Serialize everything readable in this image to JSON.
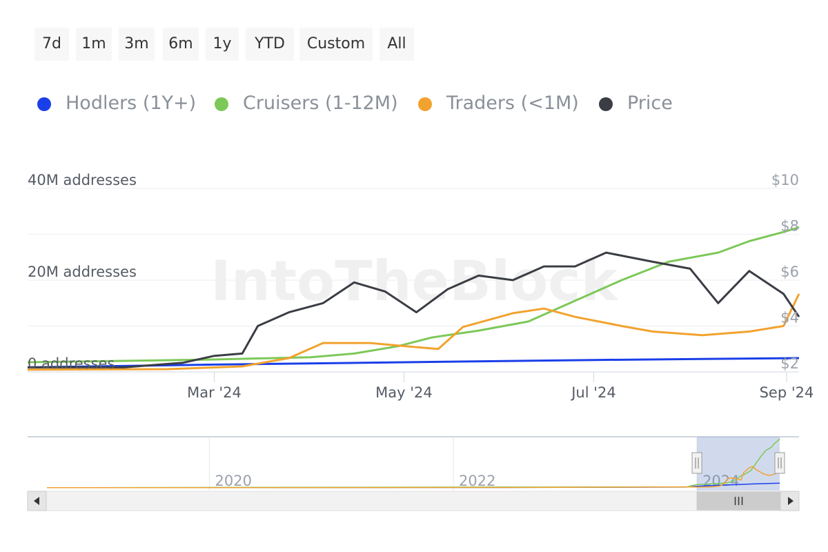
{
  "range_selector": {
    "buttons": [
      "7d",
      "1m",
      "3m",
      "6m",
      "1y",
      "YTD",
      "Custom",
      "All"
    ]
  },
  "legend": [
    {
      "label": "Hodlers (1Y+)",
      "color": "#1a3fe8"
    },
    {
      "label": "Cruisers (1-12M)",
      "color": "#7cc858"
    },
    {
      "label": "Traders (<1M)",
      "color": "#f2a22e"
    },
    {
      "label": "Price",
      "color": "#3a3d44"
    }
  ],
  "watermark": "IntoTheBlock",
  "chart_data": {
    "type": "line",
    "x_axis": {
      "ticks": [
        "Mar '24",
        "May '24",
        "Jul '24",
        "Sep '24"
      ]
    },
    "y_axis_left": {
      "ticks": [
        "0 addresses",
        "20M addresses",
        "40M addresses"
      ],
      "range": [
        0,
        40
      ],
      "unit": "M addresses"
    },
    "y_axis_right": {
      "ticks": [
        "$2",
        "$4",
        "$6",
        "$8",
        "$10"
      ],
      "range": [
        2,
        10
      ],
      "unit": "USD"
    },
    "grid": true,
    "x_range": [
      "2024-01-01",
      "2024-09-05"
    ],
    "series": [
      {
        "name": "Hodlers (1Y+)",
        "axis": "left",
        "color": "#1a3fe8",
        "points": [
          [
            "2024-01-01",
            1.0
          ],
          [
            "2024-03-01",
            1.6
          ],
          [
            "2024-05-01",
            2.1
          ],
          [
            "2024-07-01",
            2.6
          ],
          [
            "2024-09-05",
            3.0
          ]
        ]
      },
      {
        "name": "Cruisers (1-12M)",
        "axis": "left",
        "color": "#7cc858",
        "points": [
          [
            "2024-01-01",
            2.1
          ],
          [
            "2024-02-01",
            2.4
          ],
          [
            "2024-03-01",
            2.7
          ],
          [
            "2024-04-01",
            3.2
          ],
          [
            "2024-04-15",
            4.0
          ],
          [
            "2024-04-29",
            5.6
          ],
          [
            "2024-05-10",
            7.5
          ],
          [
            "2024-05-25",
            9.0
          ],
          [
            "2024-06-10",
            11.0
          ],
          [
            "2024-06-25",
            15.5
          ],
          [
            "2024-07-10",
            20.0
          ],
          [
            "2024-07-25",
            24.0
          ],
          [
            "2024-08-10",
            26.0
          ],
          [
            "2024-08-20",
            28.5
          ],
          [
            "2024-08-31",
            30.5
          ],
          [
            "2024-09-05",
            31.5
          ]
        ]
      },
      {
        "name": "Traders (<1M)",
        "axis": "left",
        "color": "#f2a22e",
        "points": [
          [
            "2024-01-01",
            0.5
          ],
          [
            "2024-02-15",
            0.6
          ],
          [
            "2024-03-10",
            1.2
          ],
          [
            "2024-03-25",
            3.0
          ],
          [
            "2024-04-05",
            6.3
          ],
          [
            "2024-04-20",
            6.3
          ],
          [
            "2024-05-05",
            5.4
          ],
          [
            "2024-05-12",
            5.0
          ],
          [
            "2024-05-20",
            9.8
          ],
          [
            "2024-06-05",
            12.8
          ],
          [
            "2024-06-15",
            13.8
          ],
          [
            "2024-06-25",
            12.0
          ],
          [
            "2024-07-10",
            10.0
          ],
          [
            "2024-07-20",
            8.8
          ],
          [
            "2024-08-05",
            8.0
          ],
          [
            "2024-08-20",
            8.8
          ],
          [
            "2024-08-31",
            10.0
          ],
          [
            "2024-09-05",
            17.0
          ]
        ]
      },
      {
        "name": "Price",
        "axis": "right",
        "color": "#3a3d44",
        "points": [
          [
            "2024-01-01",
            2.2
          ],
          [
            "2024-02-01",
            2.2
          ],
          [
            "2024-02-20",
            2.4
          ],
          [
            "2024-03-01",
            2.7
          ],
          [
            "2024-03-10",
            2.8
          ],
          [
            "2024-03-15",
            4.0
          ],
          [
            "2024-03-25",
            4.6
          ],
          [
            "2024-04-05",
            5.0
          ],
          [
            "2024-04-15",
            5.9
          ],
          [
            "2024-04-25",
            5.5
          ],
          [
            "2024-05-05",
            4.6
          ],
          [
            "2024-05-15",
            5.6
          ],
          [
            "2024-05-25",
            6.2
          ],
          [
            "2024-06-05",
            6.0
          ],
          [
            "2024-06-15",
            6.6
          ],
          [
            "2024-06-25",
            6.6
          ],
          [
            "2024-07-05",
            7.2
          ],
          [
            "2024-07-20",
            6.8
          ],
          [
            "2024-08-01",
            6.5
          ],
          [
            "2024-08-10",
            5.0
          ],
          [
            "2024-08-20",
            6.4
          ],
          [
            "2024-08-31",
            5.4
          ],
          [
            "2024-09-05",
            4.4
          ]
        ]
      }
    ],
    "navigator": {
      "x_ticks": [
        "2020",
        "2022",
        "2024"
      ],
      "selected_range": [
        "2024-01-01",
        "2024-09-05"
      ]
    }
  }
}
